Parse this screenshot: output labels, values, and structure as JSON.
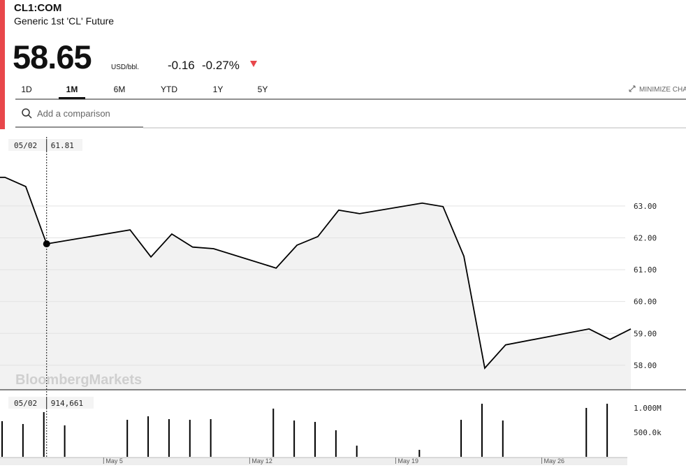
{
  "header": {
    "symbol": "CL1:COM",
    "name": "Generic 1st 'CL' Future",
    "price": 58.65,
    "unit": "USD/bbl.",
    "change": -0.16,
    "change_pct": "-0.27%"
  },
  "tabs": {
    "items": [
      "1D",
      "1M",
      "6M",
      "YTD",
      "1Y",
      "5Y"
    ],
    "active": 1
  },
  "minimize": "MINIMIZE CHART",
  "search_placeholder": "Add a comparison",
  "watermark": "BloombergMarkets",
  "crosshair": {
    "date": "05/02",
    "price": "61.81",
    "volume": "914,661"
  },
  "chart_data": [
    {
      "type": "line",
      "color": "#000000",
      "fill": "#f2f2f2",
      "grid": true,
      "x": [
        "Apr 30",
        "May 1",
        "May 2",
        "May 6",
        "May 7",
        "May 8",
        "May 9",
        "May 10",
        "May 13",
        "May 14",
        "May 15",
        "May 16",
        "May 17",
        "May 20",
        "May 21",
        "May 22",
        "May 23",
        "May 24",
        "May 28",
        "May 29",
        "May 30"
      ],
      "values": [
        63.9,
        63.61,
        61.81,
        62.25,
        61.4,
        62.12,
        61.71,
        61.66,
        61.05,
        61.77,
        62.04,
        62.87,
        62.76,
        63.09,
        62.98,
        61.42,
        57.91,
        58.64,
        59.14,
        58.81,
        59.14
      ],
      "xlim": [
        "Apr 30",
        "May 30"
      ],
      "ylim": [
        57.23,
        65.3
      ],
      "yticks": [
        {
          "value": 58,
          "label": "58.00"
        },
        {
          "value": 59,
          "label": "59.00"
        },
        {
          "value": 60,
          "label": "60.00"
        },
        {
          "value": 61,
          "label": "61.00"
        },
        {
          "value": 62,
          "label": "62.00"
        },
        {
          "value": 63,
          "label": "63.00"
        }
      ]
    },
    {
      "type": "bar",
      "color": "#000000",
      "x": [
        "Apr 30",
        "May 1",
        "May 2",
        "May 3",
        "May 6",
        "May 7",
        "May 8",
        "May 9",
        "May 10",
        "May 13",
        "May 14",
        "May 15",
        "May 16",
        "May 17",
        "May 20",
        "May 22",
        "May 23",
        "May 24",
        "May 28",
        "May 29"
      ],
      "values": [
        729000,
        671000,
        914661,
        643000,
        757000,
        829000,
        771000,
        757000,
        771000,
        986000,
        743000,
        714000,
        543000,
        229000,
        143000,
        757000,
        1086000,
        743000,
        1000000,
        1086000
      ],
      "xlim": [
        "Apr 30",
        "May 30"
      ],
      "ylim": [
        0,
        1300000
      ],
      "xticks": [
        "May 5",
        "May 12",
        "May 19",
        "May 26"
      ],
      "yticks": [
        {
          "value": 500000,
          "label": "500.0k"
        },
        {
          "value": 1000000,
          "label": "1.000M"
        }
      ]
    }
  ]
}
